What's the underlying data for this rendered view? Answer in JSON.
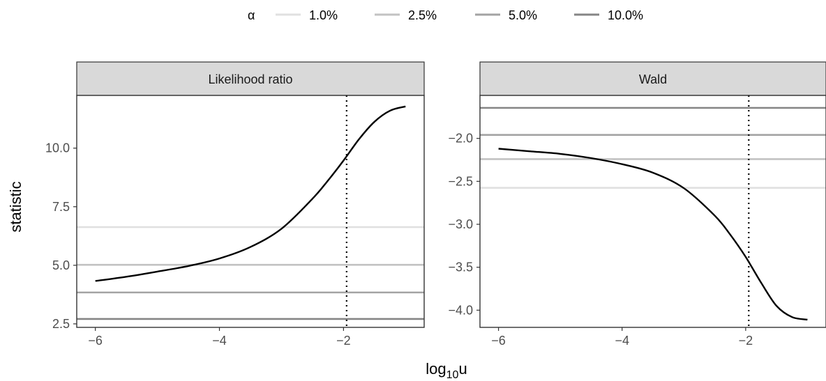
{
  "chart_data": {
    "type": "line",
    "legend": {
      "title": "α",
      "position": "top",
      "entries": [
        {
          "label": "1.0%",
          "color": "#e0e0e0"
        },
        {
          "label": "2.5%",
          "color": "#c2c2c2"
        },
        {
          "label": "5.0%",
          "color": "#a3a3a3"
        },
        {
          "label": "10.0%",
          "color": "#858585"
        }
      ]
    },
    "xlabel": "log",
    "xlabel_sub": "10",
    "xlabel_suffix": "u",
    "ylabel": "statistic",
    "xlim": [
      -6.3,
      -0.7
    ],
    "vline_x": -1.95,
    "grid": false,
    "panels": [
      {
        "strip": "Likelihood ratio",
        "ylim": [
          2.35,
          12.25
        ],
        "yticks": [
          2.5,
          5.0,
          7.5,
          10.0
        ],
        "ytick_labels": [
          "2.5",
          "5.0",
          "7.5",
          "10.0"
        ],
        "xticks": [
          -6,
          -4,
          -2
        ],
        "xtick_labels": [
          "−6",
          "−4",
          "−2"
        ],
        "hlines": [
          {
            "alpha": "1.0%",
            "y": 6.63
          },
          {
            "alpha": "2.5%",
            "y": 5.02
          },
          {
            "alpha": "5.0%",
            "y": 3.84
          },
          {
            "alpha": "10.0%",
            "y": 2.71
          }
        ],
        "curve": {
          "x": [
            -6,
            -5.5,
            -5,
            -4.5,
            -4,
            -3.5,
            -3,
            -2.5,
            -2.25,
            -2,
            -1.75,
            -1.5,
            -1.25,
            -1
          ],
          "y": [
            4.33,
            4.51,
            4.73,
            4.97,
            5.29,
            5.78,
            6.56,
            7.84,
            8.62,
            9.47,
            10.38,
            11.13,
            11.6,
            11.78
          ]
        }
      },
      {
        "strip": "Wald",
        "ylim": [
          -4.2,
          -1.5
        ],
        "yticks": [
          -4.0,
          -3.5,
          -3.0,
          -2.5,
          -2.0
        ],
        "ytick_labels": [
          "−4.0",
          "−3.5",
          "−3.0",
          "−2.5",
          "−2.0"
        ],
        "xticks": [
          -6,
          -4,
          -2
        ],
        "xtick_labels": [
          "−6",
          "−4",
          "−2"
        ],
        "hlines": [
          {
            "alpha": "1.0%",
            "y": -2.576
          },
          {
            "alpha": "2.5%",
            "y": -2.241
          },
          {
            "alpha": "5.0%",
            "y": -1.96
          },
          {
            "alpha": "10.0%",
            "y": -1.645
          }
        ],
        "curve": {
          "x": [
            -6,
            -5.5,
            -5,
            -4.5,
            -4,
            -3.5,
            -3,
            -2.5,
            -2.25,
            -2,
            -1.75,
            -1.5,
            -1.25,
            -1
          ],
          "y": [
            -2.12,
            -2.15,
            -2.18,
            -2.23,
            -2.3,
            -2.4,
            -2.58,
            -2.9,
            -3.12,
            -3.38,
            -3.68,
            -3.95,
            -4.08,
            -4.11
          ]
        }
      }
    ]
  }
}
